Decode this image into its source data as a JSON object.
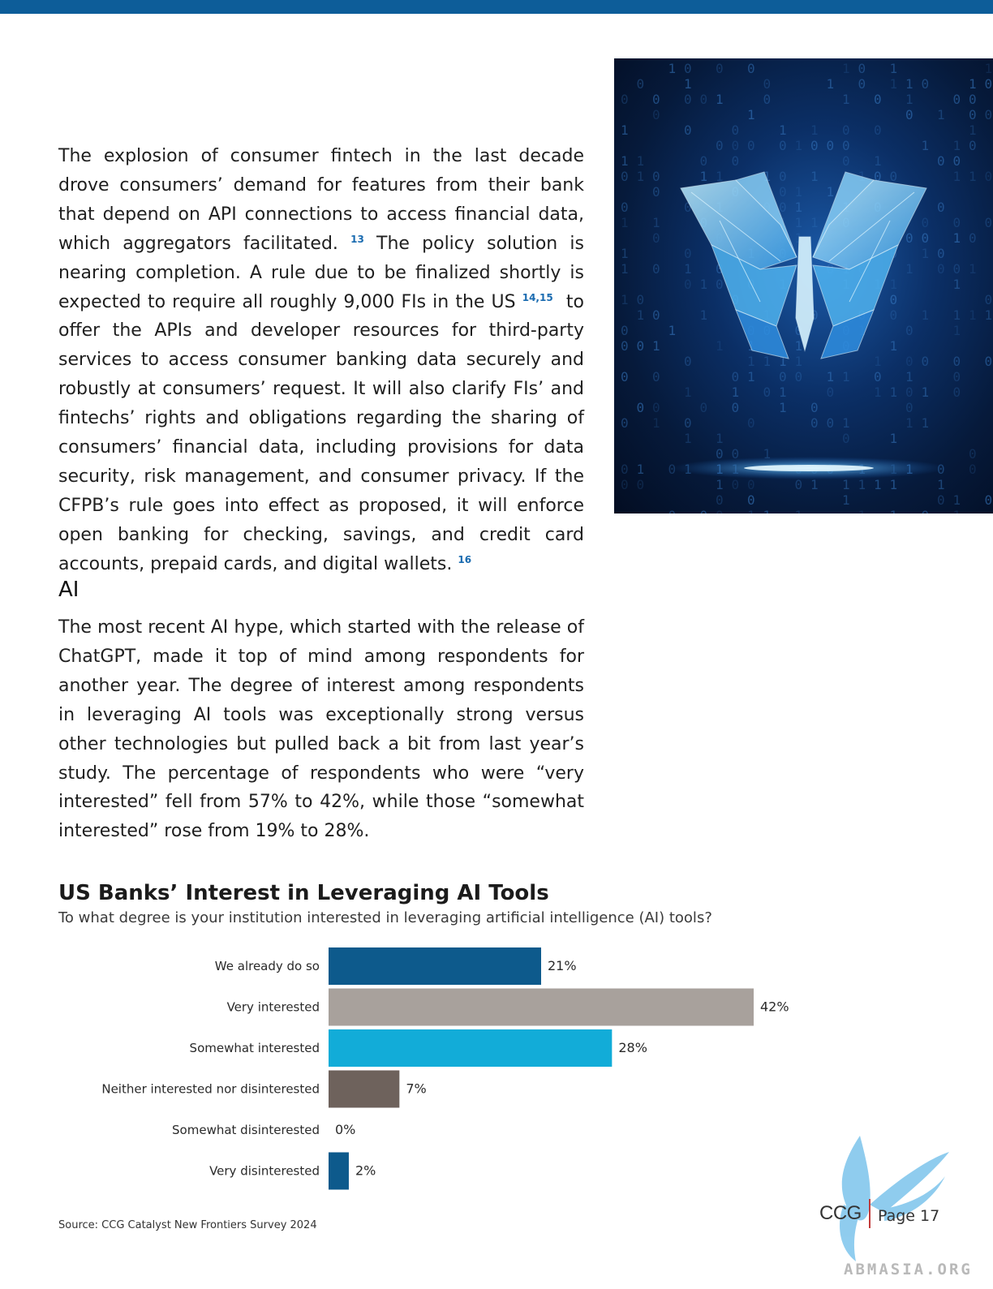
{
  "paragraphs": {
    "p1_a": "The explosion of consumer fintech in the last decade drove consumers’ demand for features from their bank that depend on API connections to access financial data, which aggregators facilitated.",
    "p1_ref1": "13",
    "p1_b": "The policy solution is nearing completion. A rule due to be finalized shortly is expected to require all roughly 9,000 FIs in the US",
    "p1_ref2": "14,15",
    "p1_c": "to offer the APIs and developer resources for third-party services to access consumer banking data securely and robustly at consumers’ request. It will also clarify FIs’ and fintechs’ rights and obligations regarding the sharing of consumers’ financial data, including provisions for data security, risk management, and consumer privacy. If the CFPB’s rule goes into effect as proposed, it will enforce open banking for checking, savings, and credit card accounts, prepaid cards, and digital wallets.",
    "p1_ref3": "16",
    "section_heading": "AI",
    "p2": "The most recent AI hype, which started with the release of ChatGPT, made it top of mind among respondents for another year. The degree of interest among respondents in leveraging AI tools was exceptionally strong versus other technologies but pulled back a bit from last year’s study. The percentage of respondents who were “very interested” fell from 57% to 42%, while those “somewhat interested” rose from 19% to 28%."
  },
  "chart_data": {
    "type": "bar",
    "orientation": "horizontal",
    "title": "US Banks’ Interest in Leveraging AI Tools",
    "subtitle": "To what degree is your institution interested in leveraging artificial intelligence (AI) tools?",
    "categories": [
      "We already do so",
      "Very interested",
      "Somewhat interested",
      "Neither interested nor disinterested",
      "Somewhat disinterested",
      "Very disinterested"
    ],
    "values": [
      21,
      42,
      28,
      7,
      0,
      2
    ],
    "value_labels": [
      "21%",
      "42%",
      "28%",
      "7%",
      "0%",
      "2%"
    ],
    "colors": [
      "#0d5a8c",
      "#a8a19c",
      "#12acd8",
      "#6e625c",
      "#0d5a8c",
      "#0d5a8c"
    ],
    "xlim": [
      0,
      42
    ],
    "grid": false,
    "legend": "none",
    "source": "Source: CCG Catalyst New Frontiers Survey 2024"
  },
  "footer": {
    "logo_text": "CCG",
    "page_label": "Page 17",
    "watermark": "ABMASIA.ORG"
  },
  "image": {
    "description_icon": "digital-butterfly-image"
  }
}
